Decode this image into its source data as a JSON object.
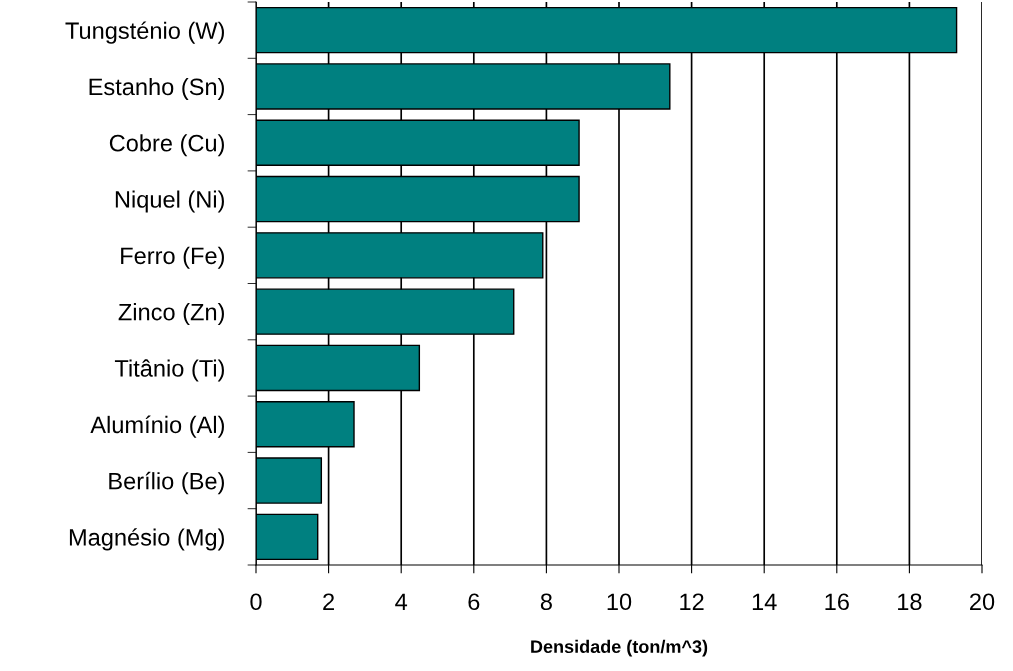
{
  "chart_data": {
    "type": "bar",
    "orientation": "horizontal",
    "xlabel": "Densidade (ton/m^3)",
    "categories": [
      "Tungsténio (W)",
      "Estanho (Sn)",
      "Cobre (Cu)",
      "Niquel (Ni)",
      "Ferro (Fe)",
      "Zinco (Zn)",
      "Titânio (Ti)",
      "Alumínio (Al)",
      "Berílio (Be)",
      "Magnésio (Mg)"
    ],
    "values": [
      19.3,
      11.4,
      8.9,
      8.9,
      7.9,
      7.1,
      4.5,
      2.7,
      1.8,
      1.7
    ],
    "color": "#008080",
    "xlim": [
      0,
      20
    ],
    "xticks": [
      0,
      2,
      4,
      6,
      8,
      10,
      12,
      14,
      16,
      18,
      20
    ],
    "grid": "x"
  }
}
